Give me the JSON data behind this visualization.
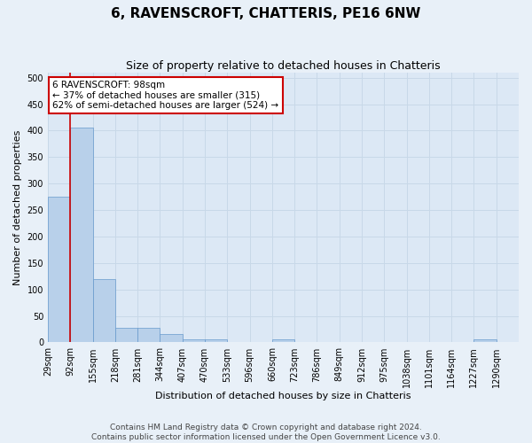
{
  "title": "6, RAVENSCROFT, CHATTERIS, PE16 6NW",
  "subtitle": "Size of property relative to detached houses in Chatteris",
  "xlabel": "Distribution of detached houses by size in Chatteris",
  "ylabel": "Number of detached properties",
  "footer_line1": "Contains HM Land Registry data © Crown copyright and database right 2024.",
  "footer_line2": "Contains public sector information licensed under the Open Government Licence v3.0.",
  "bin_labels": [
    "29sqm",
    "92sqm",
    "155sqm",
    "218sqm",
    "281sqm",
    "344sqm",
    "407sqm",
    "470sqm",
    "533sqm",
    "596sqm",
    "660sqm",
    "723sqm",
    "786sqm",
    "849sqm",
    "912sqm",
    "975sqm",
    "1038sqm",
    "1101sqm",
    "1164sqm",
    "1227sqm",
    "1290sqm"
  ],
  "bar_values": [
    275,
    405,
    120,
    28,
    28,
    15,
    5,
    5,
    0,
    0,
    5,
    0,
    0,
    0,
    0,
    0,
    0,
    0,
    0,
    5,
    0
  ],
  "bar_color": "#b8d0ea",
  "bar_edge_color": "#6699cc",
  "red_line_x": 1.0,
  "annotation_line1": "6 RAVENSCROFT: 98sqm",
  "annotation_line2": "← 37% of detached houses are smaller (315)",
  "annotation_line3": "62% of semi-detached houses are larger (524) →",
  "annotation_box_color": "#ffffff",
  "annotation_box_edge": "#cc0000",
  "annotation_text_color": "#000000",
  "title_fontsize": 11,
  "subtitle_fontsize": 9,
  "axis_label_fontsize": 8,
  "tick_fontsize": 7,
  "annotation_fontsize": 7.5,
  "footer_fontsize": 6.5,
  "ylim": [
    0,
    510
  ],
  "yticks": [
    0,
    50,
    100,
    150,
    200,
    250,
    300,
    350,
    400,
    450,
    500
  ],
  "grid_color": "#c8d8e8",
  "bg_color": "#e8f0f8",
  "plot_bg_color": "#dce8f5"
}
